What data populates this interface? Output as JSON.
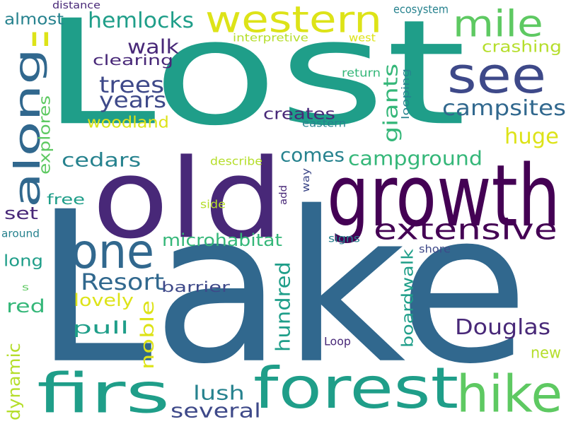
{
  "palette": {
    "yellow": "#dde318",
    "lime": "#b5de2b",
    "green": "#5ec962",
    "sea": "#35b779",
    "teal": "#1f9e89",
    "mid": "#26828e",
    "blue": "#31688e",
    "indigo": "#3e4989",
    "purple": "#482878",
    "dark": "#440154"
  },
  "words": [
    {
      "text": "Lost",
      "color": "#1f9e89"
    },
    {
      "text": "Lake",
      "color": "#31688e"
    },
    {
      "text": "old",
      "color": "#482878"
    },
    {
      "text": "growth",
      "color": "#440154"
    },
    {
      "text": "forest",
      "color": "#1f9e89"
    },
    {
      "text": "firs",
      "color": "#1f9e89"
    },
    {
      "text": "western",
      "color": "#dde318"
    },
    {
      "text": "along",
      "color": "#31688e"
    },
    {
      "text": "mile",
      "color": "#5ec962"
    },
    {
      "text": "see",
      "color": "#3e4989"
    },
    {
      "text": "one",
      "color": "#31688e"
    },
    {
      "text": "hike",
      "color": "#5ec962"
    },
    {
      "text": "extensive",
      "color": "#440154"
    },
    {
      "text": "campsites",
      "color": "#31688e"
    },
    {
      "text": "campground",
      "color": "#35b779"
    },
    {
      "text": "Douglas",
      "color": "#482878"
    },
    {
      "text": "Resort",
      "color": "#31688e"
    },
    {
      "text": "hemlocks",
      "color": "#1f9e89"
    },
    {
      "text": "trees",
      "color": "#3e4989"
    },
    {
      "text": "years",
      "color": "#3e4989"
    },
    {
      "text": "walk",
      "color": "#482878"
    },
    {
      "text": "clearing",
      "color": "#482878"
    },
    {
      "text": "cedars",
      "color": "#26828e"
    },
    {
      "text": "comes",
      "color": "#26828e"
    },
    {
      "text": "creates",
      "color": "#482878"
    },
    {
      "text": "woodland",
      "color": "#dde318"
    },
    {
      "text": "giants",
      "color": "#35b779"
    },
    {
      "text": "huge",
      "color": "#dde318"
    },
    {
      "text": "crashing",
      "color": "#b5de2b"
    },
    {
      "text": "almost",
      "color": "#26828e"
    },
    {
      "text": "ll",
      "color": "#dde318"
    },
    {
      "text": "explores",
      "color": "#5ec962"
    },
    {
      "text": "set",
      "color": "#482878"
    },
    {
      "text": "free",
      "color": "#1f9e89"
    },
    {
      "text": "long",
      "color": "#1f9e89"
    },
    {
      "text": "microhabitat",
      "color": "#35b779"
    },
    {
      "text": "barrier",
      "color": "#3e4989"
    },
    {
      "text": "red",
      "color": "#35b779"
    },
    {
      "text": "lovely",
      "color": "#dde318"
    },
    {
      "text": "pull",
      "color": "#1f9e89"
    },
    {
      "text": "noble",
      "color": "#dde318"
    },
    {
      "text": "hundred",
      "color": "#1f9e89"
    },
    {
      "text": "boardwalk",
      "color": "#1f9e89"
    },
    {
      "text": "dynamic",
      "color": "#b5de2b"
    },
    {
      "text": "lush",
      "color": "#26828e"
    },
    {
      "text": "several",
      "color": "#3e4989"
    },
    {
      "text": "new",
      "color": "#b5de2b"
    },
    {
      "text": "interpretive",
      "color": "#b5de2b"
    },
    {
      "text": "west",
      "color": "#dde318"
    },
    {
      "text": "ecosystem",
      "color": "#26828e"
    },
    {
      "text": "distance",
      "color": "#482878"
    },
    {
      "text": "return",
      "color": "#35b779"
    },
    {
      "text": "looping",
      "color": "#26828e"
    },
    {
      "text": "eastern",
      "color": "#26828e"
    },
    {
      "text": "describe",
      "color": "#b5de2b"
    },
    {
      "text": "way",
      "color": "#3e4989"
    },
    {
      "text": "add",
      "color": "#482878"
    },
    {
      "text": "side",
      "color": "#b5de2b"
    },
    {
      "text": "around",
      "color": "#26828e"
    },
    {
      "text": "signs",
      "color": "#26828e"
    },
    {
      "text": "shore",
      "color": "#3e4989"
    },
    {
      "text": "s",
      "color": "#5ec962"
    },
    {
      "text": "Loop",
      "color": "#482878"
    }
  ]
}
